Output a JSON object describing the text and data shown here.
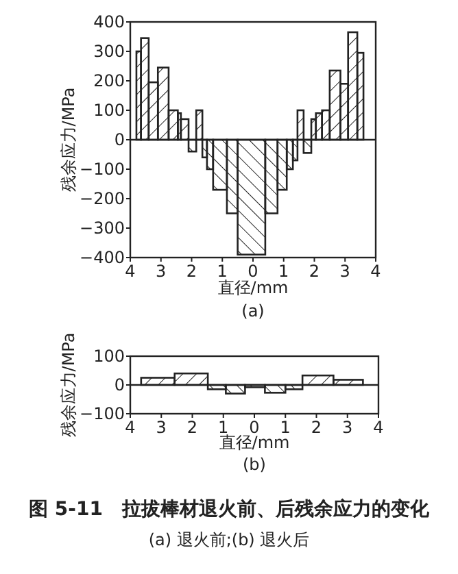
{
  "chart_data": [
    {
      "type": "histogram",
      "ylabel": "残余应力/MPa",
      "xlabel": "直径/mm",
      "annotations": [
        "(a)"
      ],
      "bins": [
        -3.8,
        -3.65,
        -3.4,
        -3.1,
        -2.75,
        -2.45,
        -2.35,
        -2.1,
        -1.85,
        -1.65,
        -1.5,
        -1.3,
        -0.85,
        -0.5,
        0.4,
        0.8,
        1.1,
        1.3,
        1.45,
        1.65,
        1.9,
        2.05,
        2.25,
        2.5,
        2.85,
        3.1,
        3.4,
        3.6
      ],
      "values": [
        300,
        345,
        195,
        245,
        100,
        90,
        70,
        -40,
        100,
        -60,
        -100,
        -170,
        -250,
        -390,
        -250,
        -170,
        -100,
        -70,
        100,
        -45,
        70,
        90,
        100,
        235,
        190,
        365,
        295
      ],
      "color": "#222222",
      "xlim": [
        -4,
        4
      ],
      "xticks": [
        {
          "value": -4,
          "label": "4"
        },
        {
          "value": -3,
          "label": "3"
        },
        {
          "value": -2,
          "label": "2"
        },
        {
          "value": -1,
          "label": "1"
        },
        0,
        1,
        2,
        3,
        4
      ],
      "ylim": [
        -400,
        400
      ],
      "yticks": [
        -400,
        -300,
        -200,
        -100,
        0,
        100,
        200,
        300,
        400
      ],
      "ref_lines": [
        {
          "axis": "y",
          "value": 0
        }
      ]
    },
    {
      "type": "histogram",
      "ylabel": "残余应力/MPa",
      "xlabel": "直径/mm",
      "annotations": [
        "(b)",
        "图 5-11　拉拔棒材退火前、后残余应力的变化",
        "(a) 退火前;(b) 退火后"
      ],
      "bins": [
        -3.65,
        -2.57,
        -1.5,
        -0.92,
        -0.3,
        0.34,
        1.0,
        1.55,
        2.55,
        3.5
      ],
      "values": [
        25,
        40,
        -15,
        -30,
        -8,
        -27,
        -15,
        33,
        18
      ],
      "color": "#222222",
      "xlim": [
        -4,
        4
      ],
      "xticks": [
        {
          "value": -4,
          "label": "4"
        },
        {
          "value": -3,
          "label": "3"
        },
        {
          "value": -2,
          "label": "2"
        },
        {
          "value": -1,
          "label": "1"
        },
        0,
        1,
        2,
        3,
        4
      ],
      "ylim": [
        -100,
        100
      ],
      "yticks": [
        -100,
        0,
        100
      ],
      "ref_lines": [
        {
          "axis": "y",
          "value": 0
        }
      ]
    }
  ]
}
